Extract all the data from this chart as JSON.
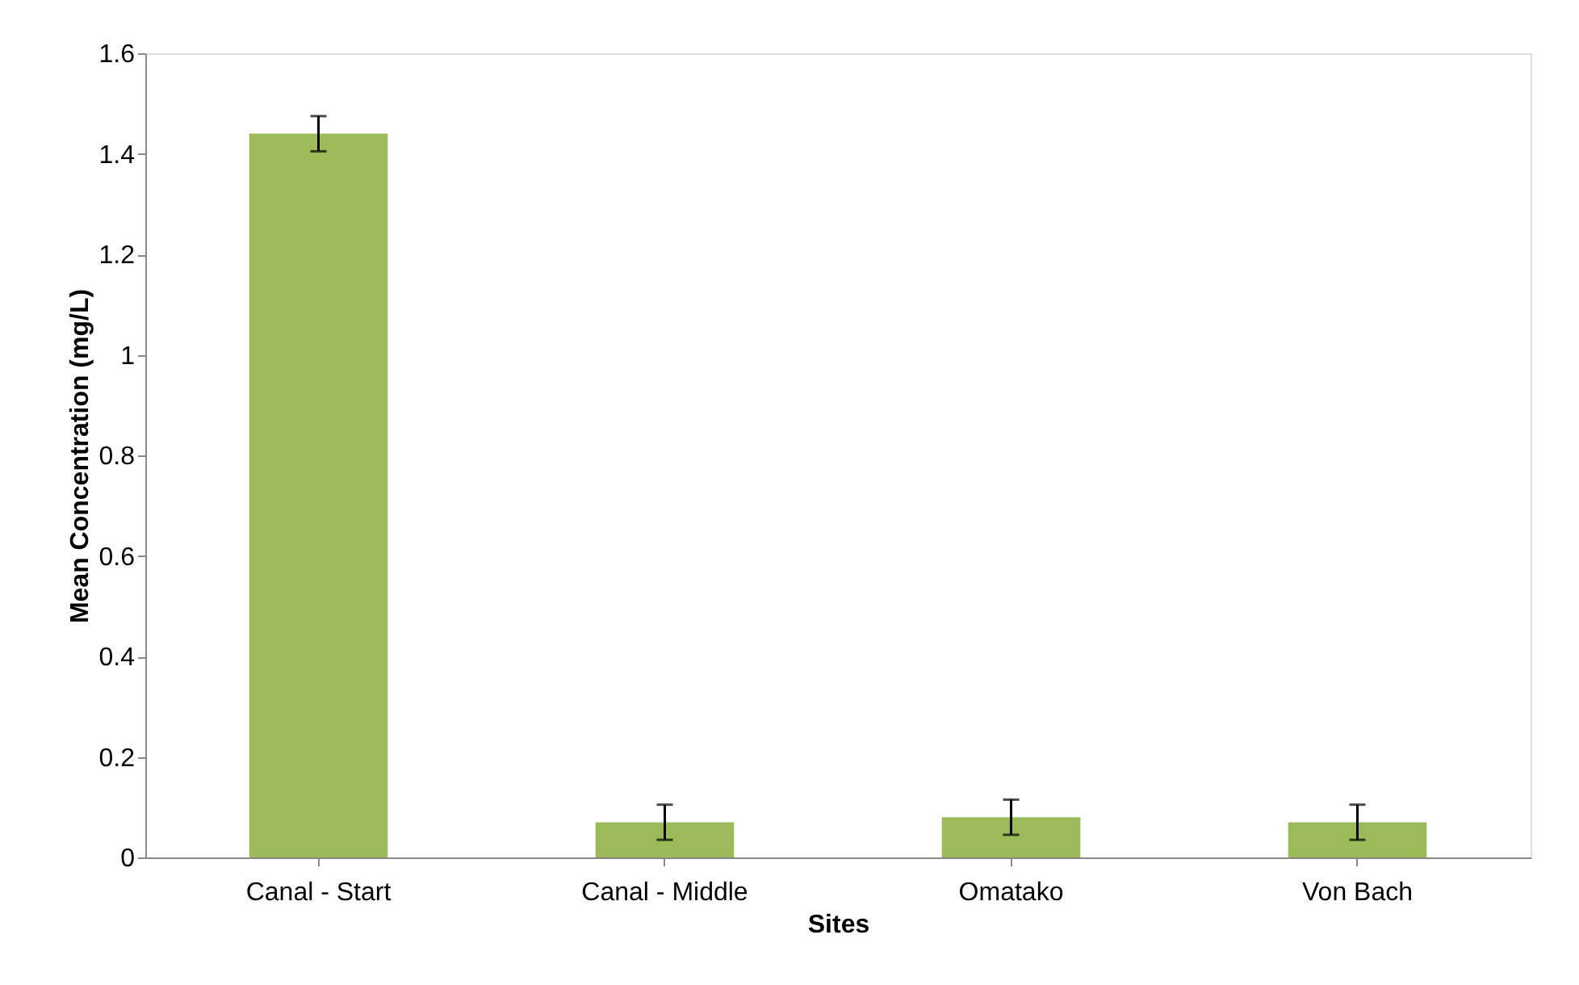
{
  "chart_data": {
    "type": "bar",
    "xlabel": "Sites",
    "ylabel": "Mean Concentration (mg/L)",
    "categories": [
      "Canal - Start",
      "Canal - Middle",
      "Omatako",
      "Von Bach"
    ],
    "values": [
      1.44,
      0.07,
      0.08,
      0.07
    ],
    "errors": [
      0.035,
      0.035,
      0.035,
      0.035
    ],
    "color": "#9bbb59",
    "ylim": [
      0,
      1.6
    ],
    "yticks": [
      0,
      0.2,
      0.4,
      0.6,
      0.8,
      1,
      1.2,
      1.4,
      1.6
    ],
    "grid": false
  }
}
